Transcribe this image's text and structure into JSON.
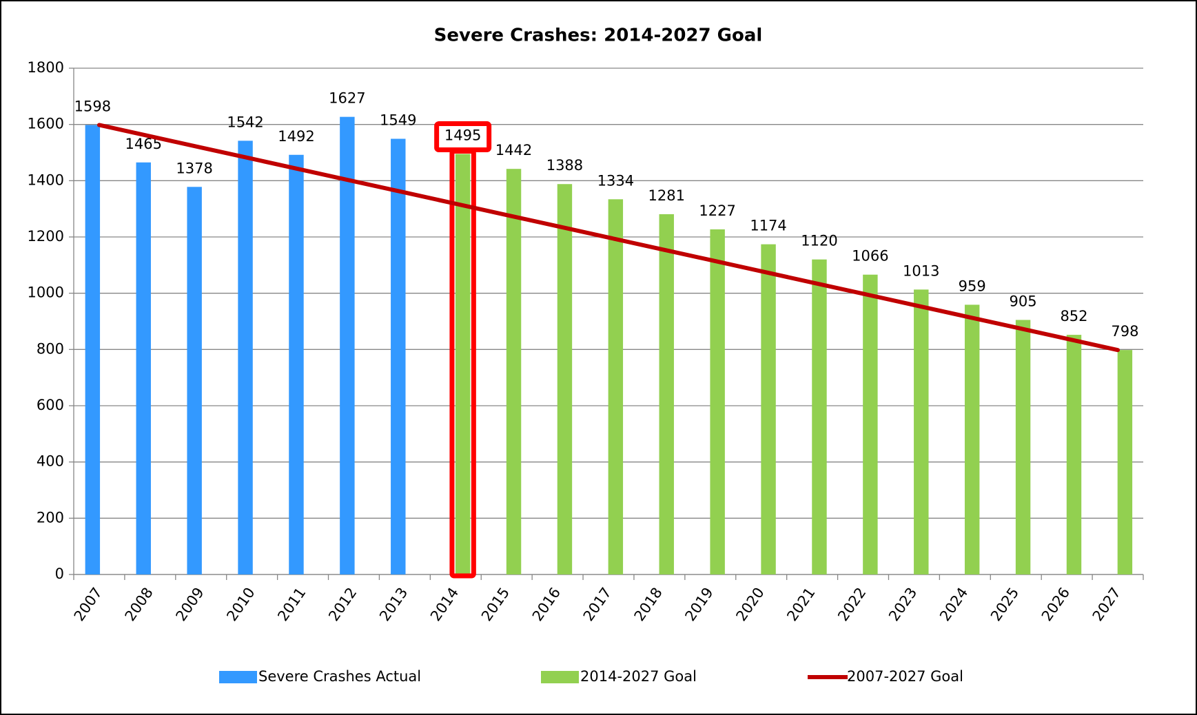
{
  "chart_data": {
    "type": "bar",
    "title": "Severe Crashes:  2014-2027 Goal",
    "categories": [
      "2007",
      "2008",
      "2009",
      "2010",
      "2011",
      "2012",
      "2013",
      "2014",
      "2015",
      "2016",
      "2017",
      "2018",
      "2019",
      "2020",
      "2021",
      "2022",
      "2023",
      "2024",
      "2025",
      "2026",
      "2027"
    ],
    "series": [
      {
        "name": "Severe Crashes Actual",
        "color": "#3399ff",
        "kind": "bar",
        "values": [
          1598,
          1465,
          1378,
          1542,
          1492,
          1627,
          1549,
          null,
          null,
          null,
          null,
          null,
          null,
          null,
          null,
          null,
          null,
          null,
          null,
          null,
          null
        ]
      },
      {
        "name": "2014-2027 Goal",
        "color": "#92d050",
        "kind": "bar",
        "values": [
          null,
          null,
          null,
          null,
          null,
          null,
          null,
          1495,
          1442,
          1388,
          1334,
          1281,
          1227,
          1174,
          1120,
          1066,
          1013,
          959,
          905,
          852,
          798
        ]
      },
      {
        "name": "2007-2027 Goal",
        "color": "#c00000",
        "kind": "line",
        "values": [
          1598,
          1558,
          1518,
          1478,
          1438,
          1398,
          1358,
          1318,
          1278,
          1238,
          1198,
          1158,
          1118,
          1078,
          1038,
          998,
          958,
          918,
          878,
          838,
          798
        ]
      }
    ],
    "ylim": [
      0,
      1800
    ],
    "yticks": [
      0,
      200,
      400,
      600,
      800,
      1000,
      1200,
      1400,
      1600,
      1800
    ],
    "grid": true,
    "legend": "bottom"
  }
}
